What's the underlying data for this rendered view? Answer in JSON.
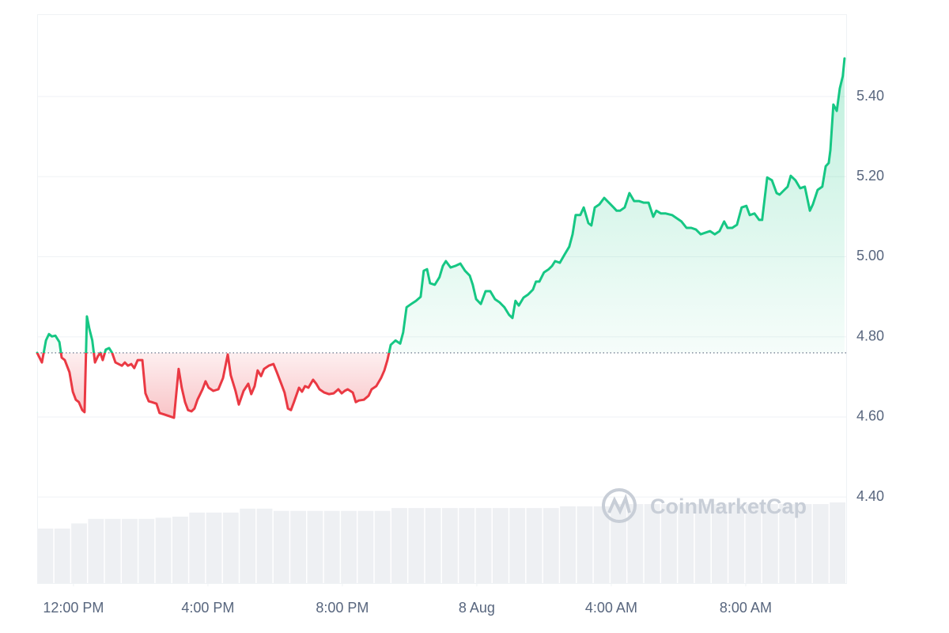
{
  "chart_data": {
    "type": "line",
    "x": [
      10.92,
      11.06,
      11.18,
      11.27,
      11.36,
      11.46,
      11.58,
      11.65,
      11.74,
      11.88,
      11.98,
      12.07,
      12.16,
      12.26,
      12.33,
      12.4,
      12.47,
      12.56,
      12.64,
      12.73,
      12.8,
      12.87,
      12.96,
      13.06,
      13.15,
      13.25,
      13.34,
      13.44,
      13.53,
      13.62,
      13.72,
      13.81,
      13.91,
      14.05,
      14.14,
      14.24,
      14.33,
      14.47,
      14.56,
      14.71,
      14.85,
      14.99,
      15.13,
      15.22,
      15.32,
      15.41,
      15.51,
      15.6,
      15.69,
      15.84,
      15.93,
      16.02,
      16.16,
      16.31,
      16.45,
      16.59,
      16.68,
      16.82,
      16.92,
      17.06,
      17.2,
      17.29,
      17.39,
      17.48,
      17.58,
      17.67,
      17.81,
      17.95,
      18.05,
      18.19,
      18.28,
      18.38,
      18.47,
      18.56,
      18.71,
      18.8,
      18.89,
      18.99,
      19.13,
      19.22,
      19.32,
      19.46,
      19.6,
      19.74,
      19.88,
      19.98,
      20.07,
      20.16,
      20.31,
      20.4,
      20.49,
      20.64,
      20.78,
      20.87,
      21.01,
      21.15,
      21.25,
      21.34,
      21.44,
      21.58,
      21.72,
      21.81,
      21.91,
      22.05,
      22.19,
      22.33,
      22.42,
      22.52,
      22.61,
      22.75,
      22.89,
      22.99,
      23.08,
      23.22,
      23.36,
      23.51,
      23.65,
      23.79,
      23.88,
      23.98,
      24.12,
      24.26,
      24.4,
      24.54,
      24.68,
      24.82,
      24.96,
      25.06,
      25.15,
      25.25,
      25.39,
      25.53,
      25.67,
      25.76,
      25.86,
      26.0,
      26.14,
      26.24,
      26.33,
      26.47,
      26.61,
      26.75,
      26.85,
      26.94,
      27.08,
      27.18,
      27.32,
      27.41,
      27.51,
      27.65,
      27.79,
      27.93,
      28.07,
      28.16,
      28.26,
      28.4,
      28.54,
      28.68,
      28.82,
      28.96,
      29.11,
      29.25,
      29.34,
      29.48,
      29.62,
      29.81,
      29.95,
      30.09,
      30.24,
      30.38,
      30.52,
      30.66,
      30.8,
      30.94,
      31.08,
      31.22,
      31.36,
      31.46,
      31.6,
      31.74,
      31.88,
      32.02,
      32.12,
      32.26,
      32.4,
      32.49,
      32.64,
      32.78,
      32.92,
      33.01,
      33.15,
      33.25,
      33.34,
      33.48,
      33.62,
      33.76,
      33.91,
      34.0,
      34.14,
      34.28,
      34.38,
      34.47,
      34.52,
      34.61,
      34.71,
      34.8,
      34.89,
      34.94
    ],
    "values": [
      4.76,
      4.736,
      4.791,
      4.807,
      4.801,
      4.803,
      4.787,
      4.748,
      4.742,
      4.712,
      4.663,
      4.643,
      4.637,
      4.617,
      4.612,
      4.851,
      4.821,
      4.791,
      4.736,
      4.752,
      4.76,
      4.742,
      4.768,
      4.772,
      4.76,
      4.736,
      4.732,
      4.728,
      4.736,
      4.728,
      4.732,
      4.722,
      4.742,
      4.742,
      4.659,
      4.639,
      4.637,
      4.633,
      4.61,
      4.606,
      4.602,
      4.598,
      4.72,
      4.673,
      4.637,
      4.617,
      4.614,
      4.621,
      4.643,
      4.669,
      4.689,
      4.673,
      4.665,
      4.669,
      4.697,
      4.756,
      4.704,
      4.665,
      4.631,
      4.665,
      4.683,
      4.657,
      4.677,
      4.716,
      4.702,
      4.72,
      4.728,
      4.732,
      4.712,
      4.681,
      4.661,
      4.621,
      4.617,
      4.637,
      4.673,
      4.663,
      4.677,
      4.673,
      4.693,
      4.683,
      4.669,
      4.661,
      4.657,
      4.659,
      4.669,
      4.659,
      4.665,
      4.669,
      4.661,
      4.637,
      4.641,
      4.643,
      4.653,
      4.669,
      4.677,
      4.697,
      4.716,
      4.742,
      4.78,
      4.791,
      4.783,
      4.811,
      4.874,
      4.882,
      4.89,
      4.9,
      4.965,
      4.969,
      4.934,
      4.93,
      4.949,
      4.977,
      4.989,
      4.973,
      4.977,
      4.983,
      4.965,
      4.953,
      4.93,
      4.894,
      4.882,
      4.914,
      4.914,
      4.894,
      4.886,
      4.874,
      4.855,
      4.847,
      4.89,
      4.878,
      4.898,
      4.906,
      4.918,
      4.938,
      4.938,
      4.961,
      4.969,
      4.977,
      4.989,
      4.985,
      5.005,
      5.025,
      5.056,
      5.104,
      5.104,
      5.123,
      5.084,
      5.078,
      5.123,
      5.131,
      5.147,
      5.135,
      5.123,
      5.115,
      5.115,
      5.123,
      5.159,
      5.139,
      5.139,
      5.135,
      5.135,
      5.1,
      5.115,
      5.108,
      5.108,
      5.104,
      5.096,
      5.088,
      5.072,
      5.072,
      5.068,
      5.056,
      5.06,
      5.064,
      5.056,
      5.064,
      5.088,
      5.072,
      5.072,
      5.08,
      5.123,
      5.127,
      5.104,
      5.108,
      5.092,
      5.092,
      5.198,
      5.191,
      5.159,
      5.155,
      5.167,
      5.175,
      5.202,
      5.191,
      5.171,
      5.175,
      5.115,
      5.131,
      5.167,
      5.175,
      5.226,
      5.234,
      5.266,
      5.38,
      5.364,
      5.42,
      5.451,
      5.495
    ],
    "baseline": 4.76,
    "colors": {
      "up": "#16c784",
      "down": "#ea3943"
    },
    "xlim": [
      10.92,
      34.99
    ],
    "xticks": [
      {
        "value": 12,
        "label": "12:00 PM"
      },
      {
        "value": 16,
        "label": "4:00 PM"
      },
      {
        "value": 20,
        "label": "8:00 PM"
      },
      {
        "value": 24,
        "label": "8 Aug"
      },
      {
        "value": 28,
        "label": "4:00 AM"
      },
      {
        "value": 32,
        "label": "8:00 AM"
      }
    ],
    "ylim": [
      4.185,
      5.6055
    ],
    "yticks": [
      {
        "value": 4.4,
        "label": "4.40"
      },
      {
        "value": 4.6,
        "label": "4.60"
      },
      {
        "value": 4.8,
        "label": "4.80"
      },
      {
        "value": 5.0,
        "label": "5.00"
      },
      {
        "value": 5.2,
        "label": "5.20"
      },
      {
        "value": 5.4,
        "label": "5.40"
      }
    ],
    "grid": true,
    "volume": {
      "color": "#eef0f3",
      "ylim": [
        0,
        100
      ],
      "values": [
        9.6,
        9.6,
        10.5,
        11.3,
        11.3,
        11.3,
        11.3,
        11.5,
        11.7,
        12.4,
        12.4,
        12.4,
        13.1,
        13.1,
        12.7,
        12.7,
        12.7,
        12.7,
        12.7,
        12.7,
        12.7,
        13.2,
        13.2,
        13.2,
        13.2,
        13.2,
        13.2,
        13.2,
        13.2,
        13.2,
        13.2,
        13.5,
        13.5,
        13.5,
        13.9,
        13.9,
        13.9,
        13.9,
        13.9,
        13.9,
        13.9,
        13.9,
        13.9,
        13.9,
        13.9,
        13.9,
        13.9,
        14.2
      ]
    },
    "watermark": "CoinMarketCap"
  }
}
